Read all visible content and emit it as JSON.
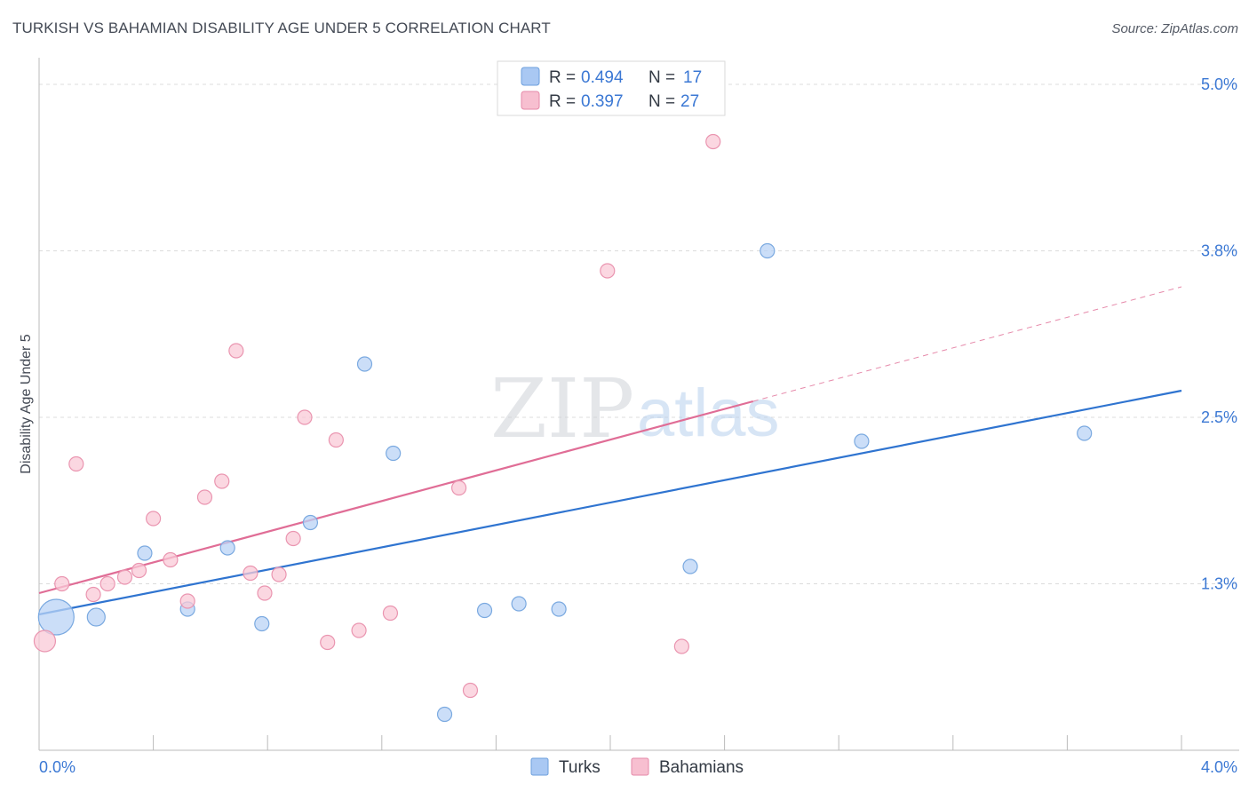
{
  "header": {
    "title": "TURKISH VS BAHAMIAN DISABILITY AGE UNDER 5 CORRELATION CHART",
    "source": "Source: ZipAtlas.com"
  },
  "watermark": {
    "zip": "ZIP",
    "atlas": "atlas"
  },
  "legend": {
    "rows": [
      {
        "r_label": "R = ",
        "r_value": "0.494",
        "n_label": "N = ",
        "n_value": "17",
        "color": "#a9c8f3",
        "stroke": "#6d9fdc"
      },
      {
        "r_label": "R = ",
        "r_value": "0.397",
        "n_label": "N = ",
        "n_value": "27",
        "color": "#f7bfd0",
        "stroke": "#e68aa8"
      }
    ]
  },
  "colors": {
    "blue_fill": "#b9d3f5",
    "blue_stroke": "#7aa9e0",
    "blue_line": "#2f74d0",
    "pink_fill": "#f9c9d7",
    "pink_stroke": "#ea95b0",
    "pink_line": "#e06d96",
    "value_text": "#3b78d4",
    "grid": "#dcdcdc",
    "axis": "#bbbbbb"
  },
  "chart_data": {
    "type": "scatter",
    "title": "TURKISH VS BAHAMIAN DISABILITY AGE UNDER 5 CORRELATION CHART",
    "xlabel": "",
    "ylabel": "Disability Age Under 5",
    "xlim": [
      0.0,
      4.0
    ],
    "ylim": [
      0.0,
      5.2
    ],
    "x_tick_labels": [
      {
        "value": 0.0,
        "label": "0.0%"
      },
      {
        "value": 4.0,
        "label": "4.0%"
      }
    ],
    "y_tick_labels": [
      {
        "value": 1.25,
        "label": "1.3%"
      },
      {
        "value": 2.5,
        "label": "2.5%"
      },
      {
        "value": 3.75,
        "label": "3.8%"
      },
      {
        "value": 5.0,
        "label": "5.0%"
      }
    ],
    "x_minor_ticks": [
      0.4,
      0.8,
      1.2,
      1.6,
      2.0,
      2.4,
      2.8,
      3.2,
      3.6
    ],
    "series": [
      {
        "name": "Turks",
        "r": 0.494,
        "n": 17,
        "points": [
          {
            "x": 0.06,
            "y": 1.0,
            "size": 20
          },
          {
            "x": 0.2,
            "y": 1.0,
            "size": 10
          },
          {
            "x": 0.37,
            "y": 1.48,
            "size": 8
          },
          {
            "x": 0.52,
            "y": 1.06,
            "size": 8
          },
          {
            "x": 0.66,
            "y": 1.52,
            "size": 8
          },
          {
            "x": 0.78,
            "y": 0.95,
            "size": 8
          },
          {
            "x": 0.95,
            "y": 1.71,
            "size": 8
          },
          {
            "x": 1.14,
            "y": 2.9,
            "size": 8
          },
          {
            "x": 1.24,
            "y": 2.23,
            "size": 8
          },
          {
            "x": 1.42,
            "y": 0.27,
            "size": 8
          },
          {
            "x": 1.56,
            "y": 1.05,
            "size": 8
          },
          {
            "x": 1.68,
            "y": 1.1,
            "size": 8
          },
          {
            "x": 1.82,
            "y": 1.06,
            "size": 8
          },
          {
            "x": 2.28,
            "y": 1.38,
            "size": 8
          },
          {
            "x": 2.55,
            "y": 3.75,
            "size": 8
          },
          {
            "x": 2.88,
            "y": 2.32,
            "size": 8
          },
          {
            "x": 3.66,
            "y": 2.38,
            "size": 8
          }
        ],
        "trend": {
          "x0": 0.0,
          "y0": 1.02,
          "x1": 4.0,
          "y1": 2.7
        }
      },
      {
        "name": "Bahamians",
        "r": 0.397,
        "n": 27,
        "points": [
          {
            "x": 0.02,
            "y": 0.82,
            "size": 12
          },
          {
            "x": 0.08,
            "y": 1.25,
            "size": 8
          },
          {
            "x": 0.13,
            "y": 2.15,
            "size": 8
          },
          {
            "x": 0.19,
            "y": 1.17,
            "size": 8
          },
          {
            "x": 0.24,
            "y": 1.25,
            "size": 8
          },
          {
            "x": 0.3,
            "y": 1.3,
            "size": 8
          },
          {
            "x": 0.35,
            "y": 1.35,
            "size": 8
          },
          {
            "x": 0.4,
            "y": 1.74,
            "size": 8
          },
          {
            "x": 0.46,
            "y": 1.43,
            "size": 8
          },
          {
            "x": 0.52,
            "y": 1.12,
            "size": 8
          },
          {
            "x": 0.58,
            "y": 1.9,
            "size": 8
          },
          {
            "x": 0.64,
            "y": 2.02,
            "size": 8
          },
          {
            "x": 0.69,
            "y": 3.0,
            "size": 8
          },
          {
            "x": 0.74,
            "y": 1.33,
            "size": 8
          },
          {
            "x": 0.79,
            "y": 1.18,
            "size": 8
          },
          {
            "x": 0.84,
            "y": 1.32,
            "size": 8
          },
          {
            "x": 0.89,
            "y": 1.59,
            "size": 8
          },
          {
            "x": 0.93,
            "y": 2.5,
            "size": 8
          },
          {
            "x": 1.01,
            "y": 0.81,
            "size": 8
          },
          {
            "x": 1.04,
            "y": 2.33,
            "size": 8
          },
          {
            "x": 1.12,
            "y": 0.9,
            "size": 8
          },
          {
            "x": 1.23,
            "y": 1.03,
            "size": 8
          },
          {
            "x": 1.47,
            "y": 1.97,
            "size": 8
          },
          {
            "x": 1.51,
            "y": 0.45,
            "size": 8
          },
          {
            "x": 1.99,
            "y": 3.6,
            "size": 8
          },
          {
            "x": 2.25,
            "y": 0.78,
            "size": 8
          },
          {
            "x": 2.36,
            "y": 4.57,
            "size": 8
          }
        ],
        "trend": {
          "x0": 0.0,
          "y0": 1.18,
          "x1": 2.5,
          "y1": 2.62,
          "dash_x1": 4.0,
          "dash_y1": 3.48
        }
      }
    ],
    "legend_position": "bottom-center"
  }
}
